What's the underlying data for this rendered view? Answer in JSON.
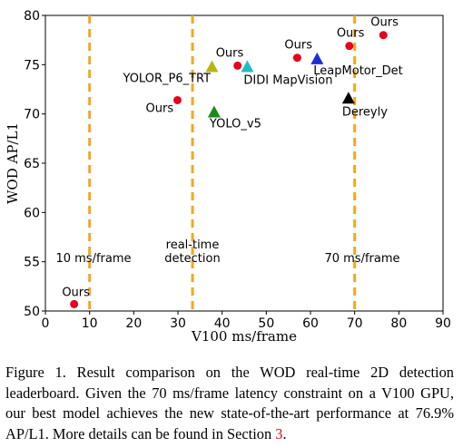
{
  "chart_data": {
    "type": "scatter",
    "xlabel": "V100 ms/frame",
    "ylabel": "WOD AP/L1",
    "xlim": [
      0,
      90
    ],
    "ylim": [
      50,
      80
    ],
    "xticks": [
      0,
      10,
      20,
      30,
      40,
      50,
      60,
      70,
      80,
      90
    ],
    "yticks": [
      50,
      55,
      60,
      65,
      70,
      75,
      80
    ],
    "grid": false,
    "vlines": [
      {
        "x": 10,
        "label": "10 ms/frame",
        "color": "#f5a623"
      },
      {
        "x": 33.3,
        "label_lines": [
          "real-time",
          "detection"
        ],
        "color": "#f5a623"
      },
      {
        "x": 70,
        "label": "70 ms/frame",
        "color": "#f5a623"
      }
    ],
    "points": [
      {
        "label": "Ours",
        "x": 6.5,
        "y": 50.7,
        "marker": "circle",
        "color": "#e8001c"
      },
      {
        "label": "Ours",
        "x": 29.9,
        "y": 71.4,
        "marker": "circle",
        "color": "#e8001c"
      },
      {
        "label": "Ours",
        "x": 43.5,
        "y": 74.9,
        "marker": "circle",
        "color": "#e8001c"
      },
      {
        "label": "Ours",
        "x": 57.0,
        "y": 75.7,
        "marker": "circle",
        "color": "#e8001c"
      },
      {
        "label": "Ours",
        "x": 68.8,
        "y": 76.9,
        "marker": "circle",
        "color": "#e8001c"
      },
      {
        "label": "Ours",
        "x": 76.5,
        "y": 78.0,
        "marker": "circle",
        "color": "#e8001c"
      },
      {
        "label": "YOLOR_P6_TRT",
        "x": 37.7,
        "y": 74.8,
        "marker": "triangle",
        "color": "#b9b416"
      },
      {
        "label": "DIDI MapVision",
        "x": 45.7,
        "y": 74.8,
        "marker": "triangle",
        "color": "#1ebdc4"
      },
      {
        "label": "LeapMotor_Det",
        "x": 61.5,
        "y": 75.6,
        "marker": "triangle",
        "color": "#1f2bd9"
      },
      {
        "label": "YOLO_v5",
        "x": 38.2,
        "y": 70.2,
        "marker": "triangle",
        "color": "#1b8a1b"
      },
      {
        "label": "Dereyly",
        "x": 68.6,
        "y": 71.6,
        "marker": "triangle",
        "color": "#000000"
      }
    ]
  },
  "caption": {
    "text": "Figure 1.  Result comparison on the WOD real-time 2D detection leaderboard.  Given the 70 ms/frame latency constraint on a V100 GPU, our best model achieves the new state-of-the-art performance at 76.9% AP/L1. More details can be found in Section ",
    "section_ref": "3",
    "suffix": "."
  }
}
